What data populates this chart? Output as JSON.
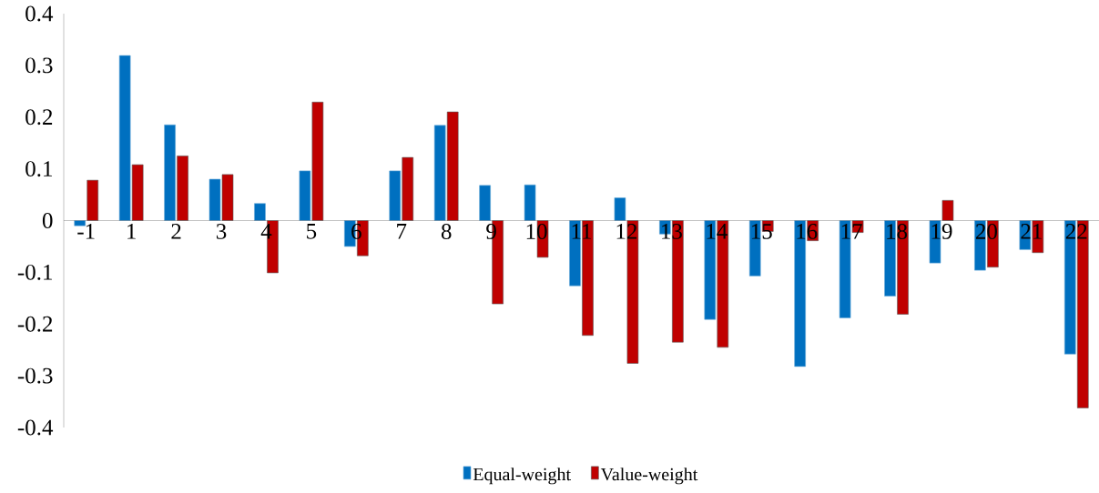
{
  "chart_data": {
    "type": "bar",
    "categories": [
      "-1",
      "1",
      "2",
      "3",
      "4",
      "5",
      "6",
      "7",
      "8",
      "9",
      "10",
      "11",
      "12",
      "13",
      "14",
      "15",
      "16",
      "17",
      "18",
      "19",
      "20",
      "21",
      "22"
    ],
    "series": [
      {
        "name": "Equal-weight",
        "color": "#0070c0",
        "values": [
          -0.01,
          0.319,
          0.185,
          0.08,
          0.033,
          0.096,
          -0.05,
          0.096,
          0.184,
          0.068,
          0.069,
          -0.126,
          0.044,
          -0.026,
          -0.191,
          -0.107,
          -0.282,
          -0.188,
          -0.146,
          -0.082,
          -0.096,
          -0.056,
          -0.258
        ]
      },
      {
        "name": "Value-weight",
        "color": "#c00000",
        "values": [
          0.078,
          0.108,
          0.125,
          0.089,
          -0.101,
          0.229,
          -0.068,
          0.122,
          0.21,
          -0.161,
          -0.071,
          -0.222,
          -0.276,
          -0.235,
          -0.245,
          -0.021,
          -0.039,
          -0.023,
          -0.181,
          0.039,
          -0.09,
          -0.062,
          -0.362
        ]
      }
    ],
    "ylim": [
      -0.4,
      0.4
    ],
    "yticks": [
      -0.4,
      -0.3,
      -0.2,
      -0.1,
      0,
      0.1,
      0.2,
      0.3,
      0.4
    ],
    "legend": "bottom"
  }
}
